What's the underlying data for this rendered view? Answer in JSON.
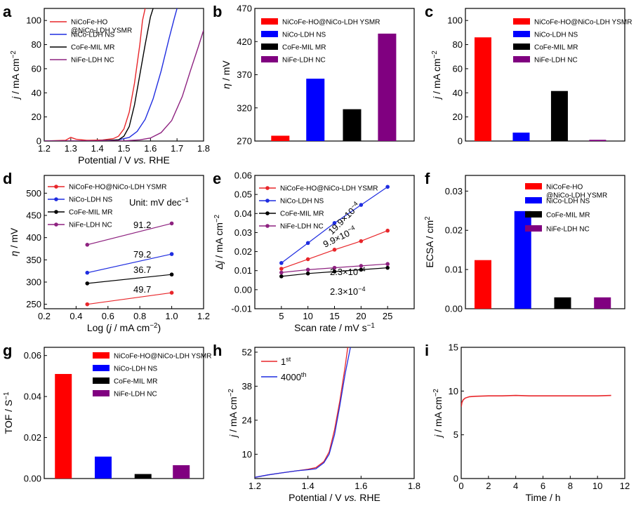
{
  "chart_data": [
    {
      "panel": "a",
      "type": "line",
      "xlabel": "Potential / V vs. RHE",
      "ylabel": "j / mA cm-2",
      "xlim": [
        1.2,
        1.8
      ],
      "ylim": [
        0,
        110
      ],
      "xticks": [
        1.2,
        1.3,
        1.4,
        1.5,
        1.6,
        1.7,
        1.8
      ],
      "yticks": [
        0,
        20,
        40,
        60,
        80,
        100
      ],
      "series": [
        {
          "name": "NiCoFe-HO\n@NiCo-LDH YSMR",
          "color": "#e8262a",
          "x": [
            1.2,
            1.28,
            1.3,
            1.32,
            1.36,
            1.42,
            1.46,
            1.48,
            1.5,
            1.52,
            1.54,
            1.56,
            1.57,
            1.58
          ],
          "y": [
            0,
            0.6,
            3,
            1.5,
            0.6,
            0.9,
            2,
            4,
            10,
            24,
            48,
            80,
            100,
            110
          ]
        },
        {
          "name": "NiCo-LDH NS",
          "color": "#1f2de0",
          "x": [
            1.2,
            1.4,
            1.48,
            1.52,
            1.55,
            1.58,
            1.61,
            1.64,
            1.67,
            1.69,
            1.7
          ],
          "y": [
            0,
            0.2,
            1,
            3,
            8,
            18,
            35,
            58,
            85,
            102,
            110
          ]
        },
        {
          "name": "CoFe-MIL MR",
          "color": "#000000",
          "x": [
            1.2,
            1.42,
            1.48,
            1.5,
            1.52,
            1.54,
            1.56,
            1.58,
            1.6,
            1.61
          ],
          "y": [
            0,
            0.2,
            1,
            4,
            12,
            30,
            55,
            80,
            103,
            110
          ]
        },
        {
          "name": "NiFe-LDH NC",
          "color": "#8e2280",
          "x": [
            1.2,
            1.5,
            1.56,
            1.6,
            1.64,
            1.68,
            1.72,
            1.75,
            1.78,
            1.8
          ],
          "y": [
            0,
            0.2,
            1,
            2.5,
            7,
            17,
            37,
            58,
            78,
            92
          ]
        }
      ]
    },
    {
      "panel": "b",
      "type": "bar",
      "ylabel": "η / mV",
      "categories": [
        "NiCoFe-HO@NiCo-LDH YSMR",
        "NiCo-LDH NS",
        "CoFe-MIL MR",
        "NiFe-LDH NC"
      ],
      "values": [
        278,
        364,
        318,
        432
      ],
      "colors": [
        "#ff0000",
        "#0000ff",
        "#000000",
        "#800080"
      ],
      "ylim": [
        270,
        470
      ],
      "yticks": [
        270,
        320,
        370,
        420,
        470
      ]
    },
    {
      "panel": "c",
      "type": "bar",
      "ylabel": "j / mA cm-2",
      "categories": [
        "NiCoFe-HO@NiCo-LDH YSMR",
        "NiCo-LDH NS",
        "CoFe-MIL MR",
        "NiFe-LDH NC"
      ],
      "values": [
        86,
        7,
        41.5,
        1
      ],
      "colors": [
        "#ff0000",
        "#0000ff",
        "#000000",
        "#800080"
      ],
      "ylim": [
        0,
        110
      ],
      "yticks": [
        0,
        20,
        40,
        60,
        80,
        100
      ]
    },
    {
      "panel": "d",
      "type": "line",
      "xlabel": "Log (j / mA cm-2)",
      "ylabel": "η / mV",
      "xlim": [
        0.2,
        1.2
      ],
      "ylim": [
        240,
        540
      ],
      "xticks": [
        0.2,
        0.4,
        0.6,
        0.8,
        1.0,
        1.2
      ],
      "yticks": [
        250,
        300,
        350,
        400,
        450,
        500
      ],
      "unit_note": "Unit: mV dec-1",
      "series": [
        {
          "name": "NiCoFe-HO@NiCo-LDH YSMR",
          "color": "#e8262a",
          "x": [
            0.47,
            1.0
          ],
          "y": [
            250,
            276
          ],
          "slope": "49.7"
        },
        {
          "name": "NiCo-LDH NS",
          "color": "#1f2de0",
          "x": [
            0.47,
            1.0
          ],
          "y": [
            321,
            363
          ],
          "slope": "79.2"
        },
        {
          "name": "CoFe-MIL MR",
          "color": "#000000",
          "x": [
            0.47,
            1.0
          ],
          "y": [
            297,
            317
          ],
          "slope": "36.7"
        },
        {
          "name": "NiFe-LDH NC",
          "color": "#8e2280",
          "x": [
            0.47,
            1.0
          ],
          "y": [
            384,
            432
          ],
          "slope": "91.2"
        }
      ]
    },
    {
      "panel": "e",
      "type": "line",
      "xlabel": "Scan rate / mV s-1",
      "ylabel": "Δj / mA cm-2",
      "xlim": [
        0,
        30
      ],
      "ylim": [
        -0.01,
        0.06
      ],
      "xticks": [
        5,
        10,
        15,
        20,
        25
      ],
      "yticks": [
        -0.01,
        0.0,
        0.01,
        0.02,
        0.03,
        0.04,
        0.05,
        0.06
      ],
      "series": [
        {
          "name": "NiCoFe-HO@NiCo-LDH YSMR",
          "color": "#e8262a",
          "x": [
            5,
            10,
            15,
            20,
            25
          ],
          "y": [
            0.011,
            0.016,
            0.021,
            0.0255,
            0.031
          ],
          "slope": "9.9×10-4"
        },
        {
          "name": "NiCo-LDH NS",
          "color": "#1f2de0",
          "x": [
            5,
            10,
            15,
            20,
            25
          ],
          "y": [
            0.014,
            0.0245,
            0.035,
            0.0445,
            0.054
          ],
          "slope": "19.9×10-4"
        },
        {
          "name": "CoFe-MIL MR",
          "color": "#000000",
          "x": [
            5,
            10,
            15,
            20,
            25
          ],
          "y": [
            0.007,
            0.0085,
            0.0095,
            0.0105,
            0.0115
          ],
          "slope": "2.3×10-4"
        },
        {
          "name": "NiFe-LDH NC",
          "color": "#8e2280",
          "x": [
            5,
            10,
            15,
            20,
            25
          ],
          "y": [
            0.009,
            0.0105,
            0.0115,
            0.0125,
            0.0135
          ],
          "slope": "2.3×10-4"
        }
      ]
    },
    {
      "panel": "f",
      "type": "bar",
      "ylabel": "ECSA / cm2",
      "categories": [
        "NiCoFe-HO\n@NiCo-LDH YSMR",
        "NiCo-LDH NS",
        "CoFe-MIL MR",
        "NiFe-LDH NC"
      ],
      "values": [
        0.0124,
        0.0249,
        0.0029,
        0.0029
      ],
      "colors": [
        "#ff0000",
        "#0000ff",
        "#000000",
        "#800080"
      ],
      "ylim": [
        0,
        0.034
      ],
      "yticks": [
        0.0,
        0.01,
        0.02,
        0.03
      ],
      "ytick_labels": [
        "0.00",
        "0.01",
        "0.02",
        "0.03"
      ]
    },
    {
      "panel": "g",
      "type": "bar",
      "ylabel": "TOF / S-1",
      "categories": [
        "NiCoFe-HO@NiCo-LDH YSMR",
        "NiCo-LDH NS",
        "CoFe-MIL MR",
        "NiFe-LDH NC"
      ],
      "values": [
        0.051,
        0.0107,
        0.0022,
        0.0065
      ],
      "colors": [
        "#ff0000",
        "#0000ff",
        "#000000",
        "#800080"
      ],
      "ylim": [
        0,
        0.064
      ],
      "yticks": [
        0.0,
        0.02,
        0.04,
        0.06
      ],
      "ytick_labels": [
        "0.00",
        "0.02",
        "0.04",
        "0.06"
      ]
    },
    {
      "panel": "h",
      "type": "line",
      "xlabel": "Potential / V vs. RHE",
      "ylabel": "j / mA cm-2",
      "xlim": [
        1.2,
        1.8
      ],
      "ylim": [
        0,
        54
      ],
      "xticks": [
        1.2,
        1.4,
        1.6,
        1.8
      ],
      "yticks": [
        10,
        24,
        38,
        52
      ],
      "series": [
        {
          "name": "1st",
          "color": "#e8262a",
          "x": [
            1.2,
            1.25,
            1.3,
            1.36,
            1.4,
            1.43,
            1.46,
            1.48,
            1.5,
            1.52,
            1.54,
            1.55
          ],
          "y": [
            0.5,
            1.5,
            2.3,
            3.2,
            3.8,
            4.5,
            7,
            11,
            20,
            32,
            46,
            54
          ]
        },
        {
          "name": "4000th",
          "color": "#1f2de0",
          "x": [
            1.2,
            1.25,
            1.3,
            1.36,
            1.4,
            1.43,
            1.46,
            1.48,
            1.5,
            1.52,
            1.54,
            1.56
          ],
          "y": [
            0.5,
            1.5,
            2.3,
            3.2,
            3.6,
            4.0,
            6.5,
            10,
            18,
            30,
            43,
            54
          ]
        }
      ]
    },
    {
      "panel": "i",
      "type": "line",
      "xlabel": "Time / h",
      "ylabel": "j / mA cm-2",
      "xlim": [
        0,
        12
      ],
      "ylim": [
        0,
        15
      ],
      "xticks": [
        0,
        2,
        4,
        6,
        8,
        10,
        12
      ],
      "yticks": [
        0,
        5,
        10,
        15
      ],
      "series": [
        {
          "name": "",
          "color": "#e8262a",
          "x": [
            0,
            0.05,
            0.15,
            0.3,
            0.6,
            1,
            2,
            3,
            4,
            5,
            6,
            7,
            8,
            9,
            10,
            11
          ],
          "y": [
            8.2,
            8.7,
            9.0,
            9.2,
            9.35,
            9.4,
            9.45,
            9.45,
            9.5,
            9.45,
            9.45,
            9.45,
            9.45,
            9.45,
            9.45,
            9.5
          ]
        }
      ]
    }
  ]
}
